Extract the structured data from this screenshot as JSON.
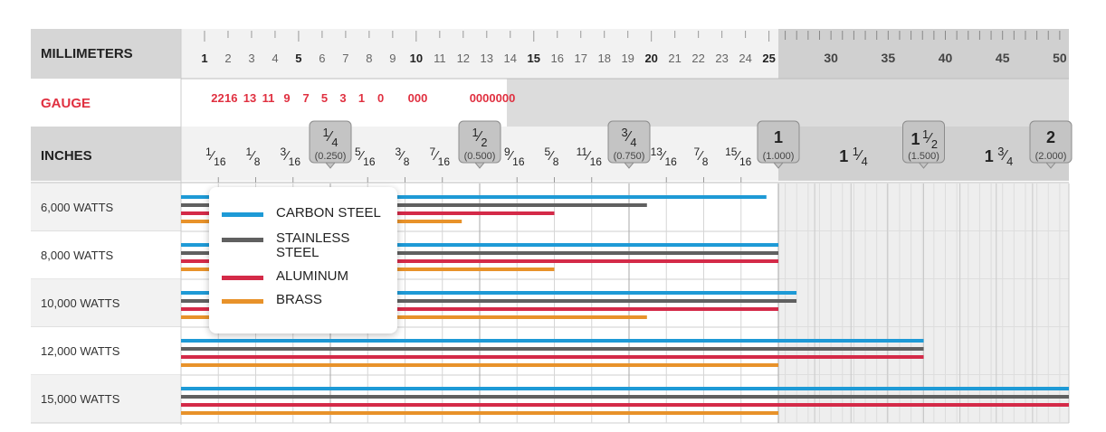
{
  "colors": {
    "carbon_steel": "#1e9ad6",
    "stainless_steel": "#606060",
    "aluminum": "#d42a48",
    "brass": "#e8922a",
    "gauge_label": "#e03040"
  },
  "headers": {
    "millimeters": "MILLIMETERS",
    "gauge": "GAUGE",
    "inches": "INCHES"
  },
  "mm_scale": {
    "fine_ticks": [
      "1",
      "2",
      "3",
      "4",
      "5",
      "6",
      "7",
      "8",
      "9",
      "10",
      "11",
      "12",
      "13",
      "14",
      "15",
      "16",
      "17",
      "18",
      "19",
      "20",
      "21",
      "22",
      "23",
      "24",
      "25"
    ],
    "bold_ticks": [
      "1",
      "5",
      "10",
      "15",
      "20",
      "25"
    ],
    "coarse_ticks": [
      "30",
      "35",
      "40",
      "45",
      "50"
    ]
  },
  "gauge_scale": {
    "labels": [
      "22",
      "16",
      "13",
      "11",
      "9",
      "7",
      "5",
      "3",
      "1",
      "0",
      "000",
      "0000000"
    ]
  },
  "inch_scale": {
    "fractions": [
      {
        "n": "1",
        "d": "16"
      },
      {
        "n": "1",
        "d": "8"
      },
      {
        "n": "3",
        "d": "16"
      },
      {
        "n": "5",
        "d": "16"
      },
      {
        "n": "3",
        "d": "8"
      },
      {
        "n": "7",
        "d": "16"
      },
      {
        "n": "9",
        "d": "16"
      },
      {
        "n": "5",
        "d": "8"
      },
      {
        "n": "11",
        "d": "16"
      },
      {
        "n": "13",
        "d": "16"
      },
      {
        "n": "7",
        "d": "8"
      },
      {
        "n": "15",
        "d": "16"
      }
    ],
    "badges": [
      {
        "whole": "",
        "n": "1",
        "d": "4",
        "decimal": "(0.250)"
      },
      {
        "whole": "",
        "n": "1",
        "d": "2",
        "decimal": "(0.500)"
      },
      {
        "whole": "",
        "n": "3",
        "d": "4",
        "decimal": "(0.750)"
      },
      {
        "whole": "1",
        "n": "",
        "d": "",
        "decimal": "(1.000)"
      },
      {
        "whole": "1",
        "n": "1",
        "d": "2",
        "decimal": "(1.500)"
      },
      {
        "whole": "2",
        "n": "",
        "d": "",
        "decimal": "(2.000)"
      }
    ],
    "plain_mixed": [
      {
        "whole": "1",
        "n": "1",
        "d": "4"
      },
      {
        "whole": "1",
        "n": "3",
        "d": "4"
      }
    ]
  },
  "legend": {
    "items": [
      {
        "key": "carbon_steel",
        "label": "CARBON STEEL"
      },
      {
        "key": "stainless_steel",
        "label": "STAINLESS STEEL"
      },
      {
        "key": "aluminum",
        "label": "ALUMINUM"
      },
      {
        "key": "brass",
        "label": "BRASS"
      }
    ]
  },
  "chart_data": {
    "type": "bar",
    "orientation": "horizontal",
    "title": "",
    "xlabel": "",
    "ylabel": "",
    "x_unit": "inches",
    "x_scale": "piecewise: 0-1 in fine, 1-2 in compressed",
    "xlim": [
      0,
      2
    ],
    "categories": [
      "6,000 WATTS",
      "8,000 WATTS",
      "10,000 WATTS",
      "12,000 WATTS",
      "15,000 WATTS"
    ],
    "series": [
      {
        "name": "CARBON STEEL",
        "key": "carbon_steel",
        "values": [
          0.98,
          1.0,
          1.0625,
          1.5,
          2.0
        ]
      },
      {
        "name": "STAINLESS STEEL",
        "key": "stainless_steel",
        "values": [
          0.78,
          1.0,
          1.0625,
          1.5,
          2.0
        ]
      },
      {
        "name": "ALUMINUM",
        "key": "aluminum",
        "values": [
          0.625,
          1.0,
          1.0,
          1.5,
          2.0
        ]
      },
      {
        "name": "BRASS",
        "key": "brass",
        "values": [
          0.47,
          0.625,
          0.78,
          1.0,
          1.0
        ]
      }
    ],
    "grid": true,
    "legend_position": "top-left"
  }
}
